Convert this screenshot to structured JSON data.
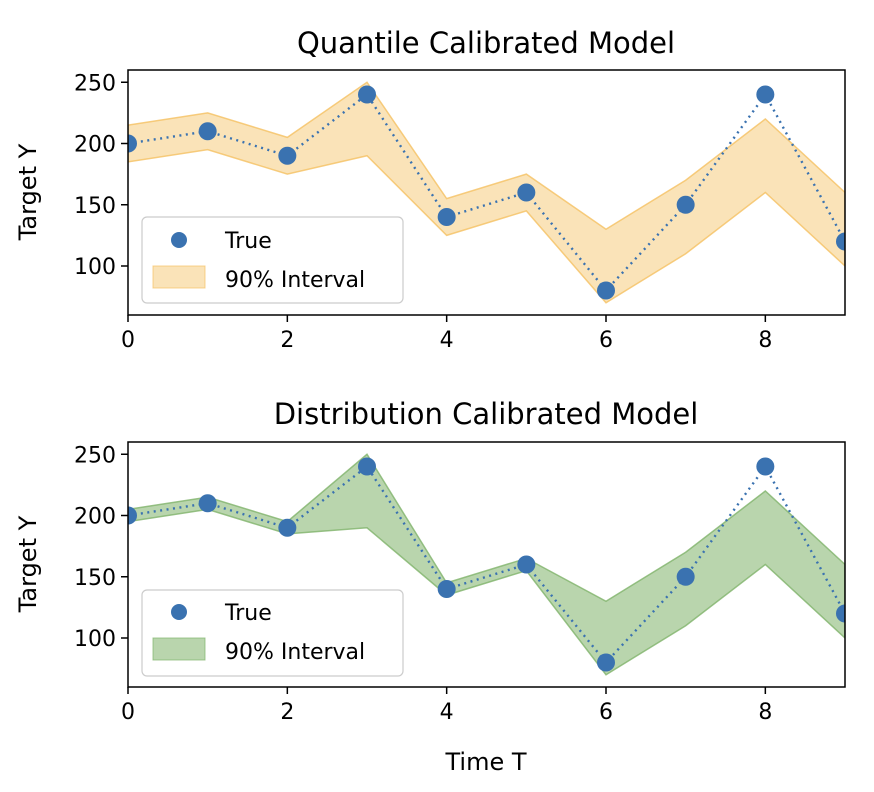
{
  "chart_data": [
    {
      "type": "line",
      "title": "Quantile Calibrated Model",
      "xlabel": "",
      "ylabel": "Target Y",
      "xlim": [
        0,
        9
      ],
      "ylim": [
        60,
        260
      ],
      "xticks": [
        "0",
        "2",
        "4",
        "6",
        "8"
      ],
      "yticks": [
        "100",
        "150",
        "200",
        "250"
      ],
      "grid": false,
      "legend_position": "lower-left",
      "series": [
        {
          "name": "True",
          "kind": "scatter",
          "color": "#3a72b0",
          "x": [
            0,
            1,
            2,
            3,
            4,
            5,
            6,
            7,
            8,
            9
          ],
          "values": [
            200,
            210,
            190,
            240,
            140,
            160,
            80,
            150,
            240,
            120
          ]
        },
        {
          "name": "90% Interval",
          "kind": "band",
          "color": "#f5c061",
          "x": [
            0,
            1,
            2,
            3,
            4,
            5,
            6,
            7,
            8,
            9
          ],
          "lower": [
            185,
            195,
            175,
            190,
            125,
            145,
            70,
            110,
            160,
            100
          ],
          "upper": [
            215,
            225,
            205,
            250,
            155,
            175,
            130,
            170,
            220,
            160
          ]
        }
      ]
    },
    {
      "type": "line",
      "title": "Distribution Calibrated Model",
      "xlabel": "Time T",
      "ylabel": "Target Y",
      "xlim": [
        0,
        9
      ],
      "ylim": [
        60,
        260
      ],
      "xticks": [
        "0",
        "2",
        "4",
        "6",
        "8"
      ],
      "yticks": [
        "100",
        "150",
        "200",
        "250"
      ],
      "grid": false,
      "legend_position": "lower-left",
      "series": [
        {
          "name": "True",
          "kind": "scatter",
          "color": "#3a72b0",
          "x": [
            0,
            1,
            2,
            3,
            4,
            5,
            6,
            7,
            8,
            9
          ],
          "values": [
            200,
            210,
            190,
            240,
            140,
            160,
            80,
            150,
            240,
            120
          ]
        },
        {
          "name": "90% Interval",
          "kind": "band",
          "color": "#7fb36a",
          "x": [
            0,
            1,
            2,
            3,
            4,
            5,
            6,
            7,
            8,
            9
          ],
          "lower": [
            195,
            205,
            185,
            190,
            135,
            155,
            70,
            110,
            160,
            100
          ],
          "upper": [
            205,
            215,
            195,
            250,
            145,
            165,
            130,
            170,
            220,
            160
          ]
        }
      ]
    }
  ]
}
